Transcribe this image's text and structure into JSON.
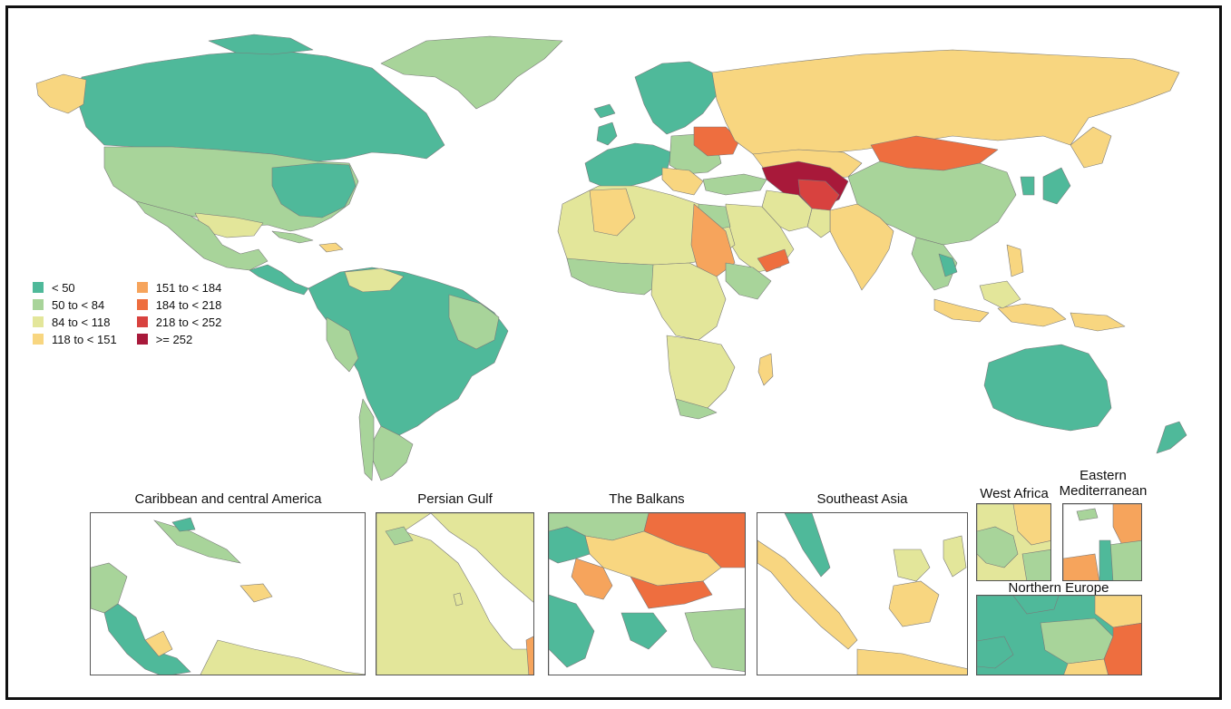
{
  "legend": {
    "items": [
      {
        "label": "< 50",
        "color": "#4fb99a"
      },
      {
        "label": "50 to < 84",
        "color": "#a8d49a"
      },
      {
        "label": "84 to < 118",
        "color": "#e3e69a"
      },
      {
        "label": "118 to < 151",
        "color": "#f8d680"
      },
      {
        "label": "151 to < 184",
        "color": "#f6a45c"
      },
      {
        "label": "184 to < 218",
        "color": "#ee6e3f"
      },
      {
        "label": "218 to < 252",
        "color": "#d8423f"
      },
      {
        "label": ">= 252",
        "color": "#a8193a"
      }
    ]
  },
  "insets": {
    "caribbean": "Caribbean and central America",
    "persian_gulf": "Persian Gulf",
    "balkans": "The Balkans",
    "southeast_asia": "Southeast Asia",
    "west_africa": "West Africa",
    "eastern_med": "Eastern\nMediterranean",
    "northern_europe": "Northern Europe"
  }
}
